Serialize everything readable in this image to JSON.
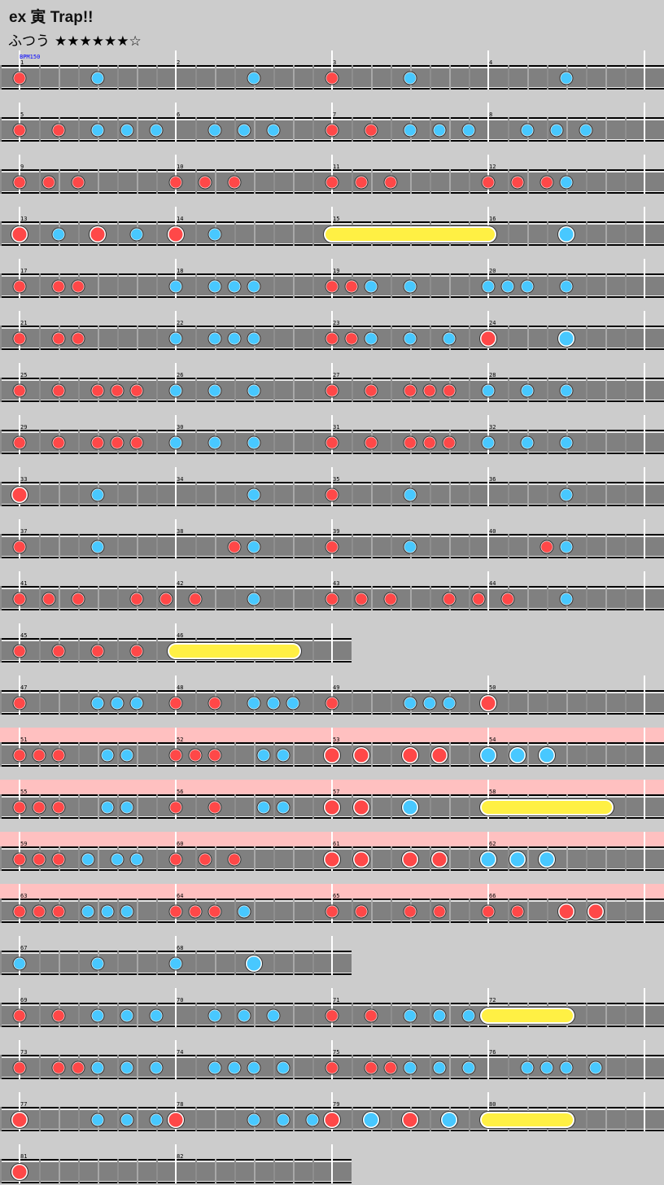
{
  "song": {
    "title": "ex 寅 Trap!!",
    "difficulty": "ふつう",
    "stars": "★★★★★★☆",
    "bpm_label": "BPM150"
  },
  "colors": {
    "background": "#cccccc",
    "lane": "#808080",
    "don": "#ff4848",
    "ka": "#48c8ff",
    "roll": "#fff044",
    "gogo": "#ffc0c0"
  },
  "rows": [
    {
      "measures": [
        1,
        2,
        3,
        4
      ],
      "gogo": false,
      "notes": [
        [
          0,
          "d"
        ],
        [
          8,
          "k"
        ],
        [
          24,
          "k"
        ],
        [
          32,
          "d"
        ],
        [
          40,
          "k"
        ],
        [
          56,
          "k"
        ]
      ],
      "rolls": []
    },
    {
      "measures": [
        5,
        6,
        7,
        8
      ],
      "gogo": false,
      "notes": [
        [
          0,
          "d"
        ],
        [
          4,
          "d"
        ],
        [
          8,
          "k"
        ],
        [
          11,
          "k"
        ],
        [
          14,
          "k"
        ],
        [
          20,
          "k"
        ],
        [
          23,
          "k"
        ],
        [
          26,
          "k"
        ],
        [
          32,
          "d"
        ],
        [
          36,
          "d"
        ],
        [
          40,
          "k"
        ],
        [
          43,
          "k"
        ],
        [
          46,
          "k"
        ],
        [
          52,
          "k"
        ],
        [
          55,
          "k"
        ],
        [
          58,
          "k"
        ]
      ],
      "rolls": []
    },
    {
      "measures": [
        9,
        10,
        11,
        12
      ],
      "gogo": false,
      "notes": [
        [
          0,
          "d"
        ],
        [
          3,
          "d"
        ],
        [
          6,
          "d"
        ],
        [
          16,
          "d"
        ],
        [
          19,
          "d"
        ],
        [
          22,
          "d"
        ],
        [
          32,
          "d"
        ],
        [
          35,
          "d"
        ],
        [
          38,
          "d"
        ],
        [
          48,
          "d"
        ],
        [
          51,
          "d"
        ],
        [
          54,
          "d"
        ],
        [
          56,
          "k"
        ]
      ],
      "rolls": []
    },
    {
      "measures": [
        13,
        14,
        15,
        16
      ],
      "gogo": false,
      "notes": [
        [
          0,
          "D"
        ],
        [
          4,
          "k"
        ],
        [
          8,
          "D"
        ],
        [
          12,
          "k"
        ],
        [
          16,
          "D"
        ],
        [
          20,
          "k"
        ],
        [
          56,
          "K"
        ]
      ],
      "rolls": [
        [
          32,
          48
        ]
      ]
    },
    {
      "measures": [
        17,
        18,
        19,
        20
      ],
      "gogo": false,
      "notes": [
        [
          0,
          "d"
        ],
        [
          4,
          "d"
        ],
        [
          6,
          "d"
        ],
        [
          16,
          "k"
        ],
        [
          20,
          "k"
        ],
        [
          22,
          "k"
        ],
        [
          24,
          "k"
        ],
        [
          32,
          "d"
        ],
        [
          34,
          "d"
        ],
        [
          36,
          "k"
        ],
        [
          40,
          "k"
        ],
        [
          48,
          "k"
        ],
        [
          50,
          "k"
        ],
        [
          52,
          "k"
        ],
        [
          56,
          "k"
        ]
      ],
      "rolls": []
    },
    {
      "measures": [
        21,
        22,
        23,
        24
      ],
      "gogo": false,
      "notes": [
        [
          0,
          "d"
        ],
        [
          4,
          "d"
        ],
        [
          6,
          "d"
        ],
        [
          16,
          "k"
        ],
        [
          20,
          "k"
        ],
        [
          22,
          "k"
        ],
        [
          24,
          "k"
        ],
        [
          32,
          "d"
        ],
        [
          34,
          "d"
        ],
        [
          36,
          "k"
        ],
        [
          40,
          "k"
        ],
        [
          44,
          "k"
        ],
        [
          48,
          "D"
        ],
        [
          56,
          "K"
        ]
      ],
      "rolls": []
    },
    {
      "measures": [
        25,
        26,
        27,
        28
      ],
      "gogo": false,
      "notes": [
        [
          0,
          "d"
        ],
        [
          4,
          "d"
        ],
        [
          8,
          "d"
        ],
        [
          10,
          "d"
        ],
        [
          12,
          "d"
        ],
        [
          16,
          "k"
        ],
        [
          20,
          "k"
        ],
        [
          24,
          "k"
        ],
        [
          32,
          "d"
        ],
        [
          36,
          "d"
        ],
        [
          40,
          "d"
        ],
        [
          42,
          "d"
        ],
        [
          44,
          "d"
        ],
        [
          48,
          "k"
        ],
        [
          52,
          "k"
        ],
        [
          56,
          "k"
        ]
      ],
      "rolls": []
    },
    {
      "measures": [
        29,
        30,
        31,
        32
      ],
      "gogo": false,
      "notes": [
        [
          0,
          "d"
        ],
        [
          4,
          "d"
        ],
        [
          8,
          "d"
        ],
        [
          10,
          "d"
        ],
        [
          12,
          "d"
        ],
        [
          16,
          "k"
        ],
        [
          20,
          "k"
        ],
        [
          24,
          "k"
        ],
        [
          32,
          "d"
        ],
        [
          36,
          "d"
        ],
        [
          40,
          "d"
        ],
        [
          42,
          "d"
        ],
        [
          44,
          "d"
        ],
        [
          48,
          "k"
        ],
        [
          52,
          "k"
        ],
        [
          56,
          "k"
        ]
      ],
      "rolls": []
    },
    {
      "measures": [
        33,
        34,
        35,
        36
      ],
      "gogo": false,
      "notes": [
        [
          0,
          "D"
        ],
        [
          8,
          "k"
        ],
        [
          24,
          "k"
        ],
        [
          32,
          "d"
        ],
        [
          40,
          "k"
        ],
        [
          56,
          "k"
        ]
      ],
      "rolls": []
    },
    {
      "measures": [
        37,
        38,
        39,
        40
      ],
      "gogo": false,
      "notes": [
        [
          0,
          "d"
        ],
        [
          8,
          "k"
        ],
        [
          22,
          "d"
        ],
        [
          24,
          "k"
        ],
        [
          32,
          "d"
        ],
        [
          40,
          "k"
        ],
        [
          54,
          "d"
        ],
        [
          56,
          "k"
        ]
      ],
      "rolls": []
    },
    {
      "measures": [
        41,
        42,
        43,
        44
      ],
      "gogo": false,
      "notes": [
        [
          0,
          "d"
        ],
        [
          3,
          "d"
        ],
        [
          6,
          "d"
        ],
        [
          12,
          "d"
        ],
        [
          15,
          "d"
        ],
        [
          18,
          "d"
        ],
        [
          24,
          "k"
        ],
        [
          32,
          "d"
        ],
        [
          35,
          "d"
        ],
        [
          38,
          "d"
        ],
        [
          44,
          "d"
        ],
        [
          47,
          "d"
        ],
        [
          50,
          "d"
        ],
        [
          56,
          "k"
        ]
      ],
      "rolls": []
    },
    {
      "measures": [
        45,
        46
      ],
      "gogo": false,
      "notes": [
        [
          0,
          "d"
        ],
        [
          4,
          "d"
        ],
        [
          8,
          "d"
        ],
        [
          12,
          "d"
        ]
      ],
      "rolls": [
        [
          16,
          28
        ]
      ]
    },
    {
      "measures": [
        47,
        48,
        49,
        50
      ],
      "gogo": false,
      "notes": [
        [
          0,
          "d"
        ],
        [
          8,
          "k"
        ],
        [
          10,
          "k"
        ],
        [
          12,
          "k"
        ],
        [
          16,
          "d"
        ],
        [
          20,
          "d"
        ],
        [
          24,
          "k"
        ],
        [
          26,
          "k"
        ],
        [
          28,
          "k"
        ],
        [
          32,
          "d"
        ],
        [
          40,
          "k"
        ],
        [
          42,
          "k"
        ],
        [
          44,
          "k"
        ],
        [
          48,
          "D"
        ]
      ],
      "rolls": []
    },
    {
      "measures": [
        51,
        52,
        53,
        54
      ],
      "gogo": true,
      "notes": [
        [
          0,
          "d"
        ],
        [
          2,
          "d"
        ],
        [
          4,
          "d"
        ],
        [
          9,
          "k"
        ],
        [
          11,
          "k"
        ],
        [
          16,
          "d"
        ],
        [
          18,
          "d"
        ],
        [
          20,
          "d"
        ],
        [
          25,
          "k"
        ],
        [
          27,
          "k"
        ],
        [
          32,
          "D"
        ],
        [
          35,
          "D"
        ],
        [
          40,
          "D"
        ],
        [
          43,
          "D"
        ],
        [
          48,
          "K"
        ],
        [
          51,
          "K"
        ],
        [
          54,
          "K"
        ]
      ],
      "rolls": []
    },
    {
      "measures": [
        55,
        56,
        57,
        58
      ],
      "gogo": true,
      "notes": [
        [
          0,
          "d"
        ],
        [
          2,
          "d"
        ],
        [
          4,
          "d"
        ],
        [
          9,
          "k"
        ],
        [
          11,
          "k"
        ],
        [
          16,
          "d"
        ],
        [
          20,
          "d"
        ],
        [
          25,
          "k"
        ],
        [
          27,
          "k"
        ],
        [
          32,
          "D"
        ],
        [
          35,
          "D"
        ],
        [
          40,
          "K"
        ]
      ],
      "rolls": [
        [
          48,
          60
        ]
      ]
    },
    {
      "measures": [
        59,
        60,
        61,
        62
      ],
      "gogo": true,
      "notes": [
        [
          0,
          "d"
        ],
        [
          2,
          "d"
        ],
        [
          4,
          "d"
        ],
        [
          7,
          "k"
        ],
        [
          10,
          "k"
        ],
        [
          12,
          "k"
        ],
        [
          16,
          "d"
        ],
        [
          19,
          "d"
        ],
        [
          22,
          "d"
        ],
        [
          32,
          "D"
        ],
        [
          35,
          "D"
        ],
        [
          40,
          "D"
        ],
        [
          43,
          "D"
        ],
        [
          48,
          "K"
        ],
        [
          51,
          "K"
        ],
        [
          54,
          "K"
        ]
      ],
      "rolls": []
    },
    {
      "measures": [
        63,
        64,
        65,
        66
      ],
      "gogo": true,
      "notes": [
        [
          0,
          "d"
        ],
        [
          2,
          "d"
        ],
        [
          4,
          "d"
        ],
        [
          7,
          "k"
        ],
        [
          9,
          "k"
        ],
        [
          11,
          "k"
        ],
        [
          16,
          "d"
        ],
        [
          18,
          "d"
        ],
        [
          20,
          "d"
        ],
        [
          23,
          "k"
        ],
        [
          32,
          "d"
        ],
        [
          35,
          "d"
        ],
        [
          40,
          "d"
        ],
        [
          43,
          "d"
        ],
        [
          48,
          "d"
        ],
        [
          51,
          "d"
        ],
        [
          56,
          "D"
        ],
        [
          59,
          "D"
        ]
      ],
      "rolls": []
    },
    {
      "measures": [
        67,
        68
      ],
      "gogo": false,
      "notes": [
        [
          0,
          "k"
        ],
        [
          8,
          "k"
        ],
        [
          16,
          "k"
        ],
        [
          24,
          "K"
        ]
      ],
      "rolls": []
    },
    {
      "measures": [
        69,
        70,
        71,
        72
      ],
      "gogo": false,
      "notes": [
        [
          0,
          "d"
        ],
        [
          4,
          "d"
        ],
        [
          8,
          "k"
        ],
        [
          11,
          "k"
        ],
        [
          14,
          "k"
        ],
        [
          20,
          "k"
        ],
        [
          23,
          "k"
        ],
        [
          26,
          "k"
        ],
        [
          32,
          "d"
        ],
        [
          36,
          "d"
        ],
        [
          40,
          "k"
        ],
        [
          43,
          "k"
        ],
        [
          46,
          "k"
        ]
      ],
      "rolls": [
        [
          48,
          56
        ]
      ]
    },
    {
      "measures": [
        73,
        74,
        75,
        76
      ],
      "gogo": false,
      "notes": [
        [
          0,
          "d"
        ],
        [
          4,
          "d"
        ],
        [
          6,
          "d"
        ],
        [
          8,
          "k"
        ],
        [
          11,
          "k"
        ],
        [
          14,
          "k"
        ],
        [
          20,
          "k"
        ],
        [
          22,
          "k"
        ],
        [
          24,
          "k"
        ],
        [
          27,
          "k"
        ],
        [
          32,
          "d"
        ],
        [
          36,
          "d"
        ],
        [
          38,
          "d"
        ],
        [
          40,
          "k"
        ],
        [
          43,
          "k"
        ],
        [
          46,
          "k"
        ],
        [
          52,
          "k"
        ],
        [
          54,
          "k"
        ],
        [
          56,
          "k"
        ],
        [
          59,
          "k"
        ]
      ],
      "rolls": []
    },
    {
      "measures": [
        77,
        78,
        79,
        80
      ],
      "gogo": false,
      "notes": [
        [
          0,
          "D"
        ],
        [
          8,
          "k"
        ],
        [
          11,
          "k"
        ],
        [
          14,
          "k"
        ],
        [
          16,
          "D"
        ],
        [
          24,
          "k"
        ],
        [
          27,
          "k"
        ],
        [
          30,
          "k"
        ],
        [
          32,
          "D"
        ],
        [
          36,
          "K"
        ],
        [
          40,
          "D"
        ],
        [
          44,
          "K"
        ]
      ],
      "rolls": [
        [
          48,
          56
        ]
      ]
    },
    {
      "measures": [
        81,
        82
      ],
      "gogo": false,
      "notes": [
        [
          0,
          "D"
        ]
      ],
      "rolls": []
    }
  ]
}
